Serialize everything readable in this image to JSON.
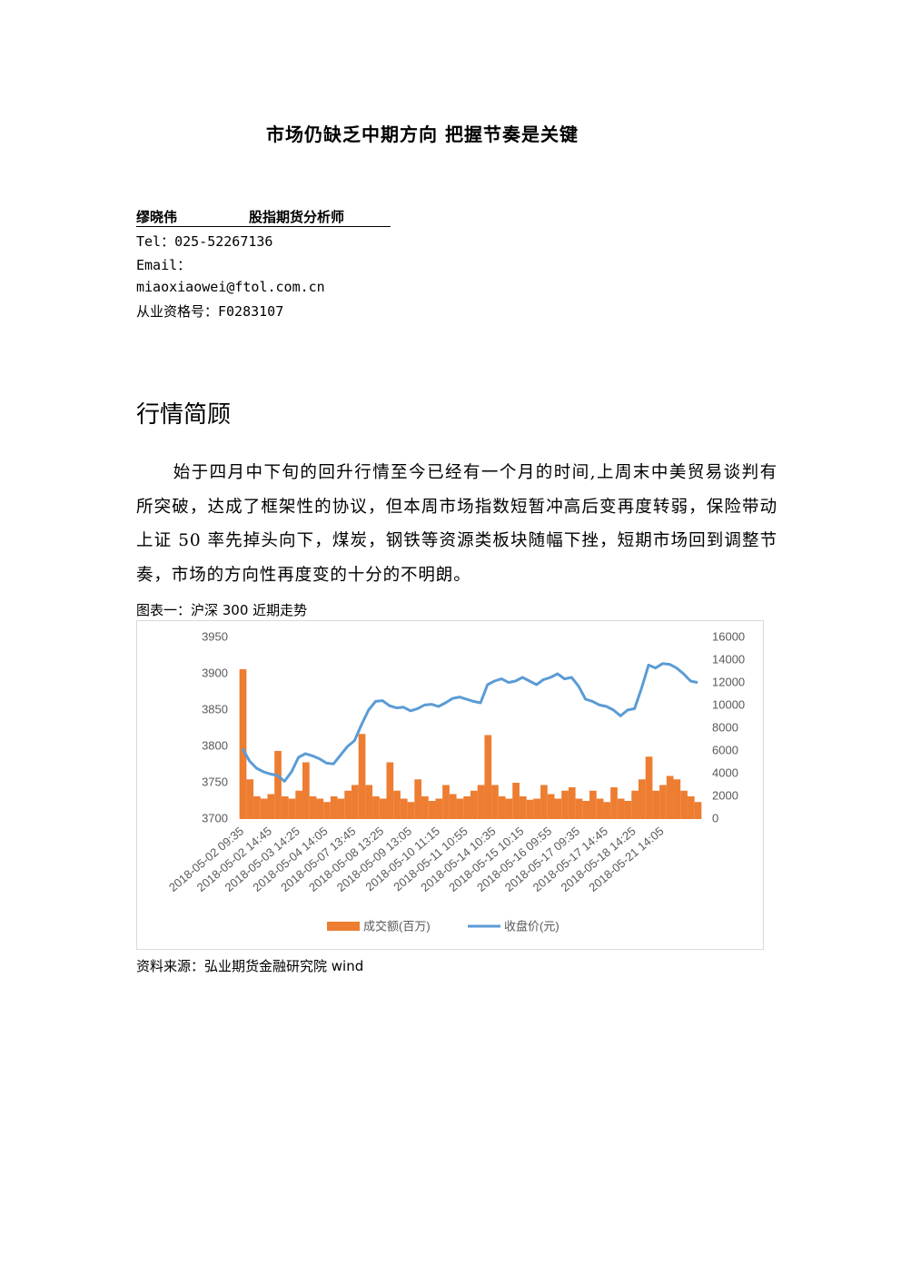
{
  "header": {
    "title": "市场仍缺乏中期方向 把握节奏是关键"
  },
  "author": {
    "name": "缪晓伟",
    "role": "股指期货分析师",
    "tel": "Tel：025-52267136",
    "email_label": "Email：",
    "email": "miaoxiaowei@ftol.com.cn",
    "license": "从业资格号：F0283107"
  },
  "section": {
    "heading": "行情简顾",
    "paragraph": "始于四月中下旬的回升行情至今已经有一个月的时间,上周末中美贸易谈判有所突破，达成了框架性的协议，但本周市场指数短暂冲高后变再度转弱，保险带动上证 50 率先掉头向下，煤炭，钢铁等资源类板块随幅下挫，短期市场回到调整节奏，市场的方向性再度变的十分的不明朗。"
  },
  "figure": {
    "caption": "图表一：沪深 300 近期走势",
    "source": "资料来源：弘业期货金融研究院  wind"
  },
  "chart_data": {
    "type": "bar-line",
    "categories": [
      "2018-05-02 09:35",
      null,
      null,
      null,
      "2018-05-02 14:45",
      null,
      null,
      null,
      "2018-05-03 14:25",
      null,
      null,
      null,
      "2018-05-04 14:05",
      null,
      null,
      null,
      "2018-05-07 13:45",
      null,
      null,
      null,
      "2018-05-08 13:25",
      null,
      null,
      null,
      "2018-05-09 13:05",
      null,
      null,
      null,
      "2018-05-10 11:15",
      null,
      null,
      null,
      "2018-05-11 10:55",
      null,
      null,
      null,
      "2018-05-14 10:35",
      null,
      null,
      null,
      "2018-05-15 10:15",
      null,
      null,
      null,
      "2018-05-16 09:55",
      null,
      null,
      null,
      "2018-05-17 09:35",
      null,
      null,
      null,
      "2018-05-17 14:45",
      null,
      null,
      null,
      "2018-05-18 14:25",
      null,
      null,
      null,
      "2018-05-21 14:05",
      null,
      null,
      null,
      null,
      null
    ],
    "series": [
      {
        "name": "成交额(百万)",
        "color": "#ed7d31",
        "kind": "bar",
        "axis": "y2",
        "values": [
          13200,
          3500,
          2000,
          1800,
          2200,
          6000,
          2000,
          1800,
          2500,
          5000,
          2000,
          1800,
          1500,
          2000,
          1800,
          2500,
          3000,
          7500,
          3000,
          2000,
          1800,
          5000,
          2500,
          1800,
          1500,
          3500,
          2000,
          1600,
          1800,
          3000,
          2200,
          1800,
          2000,
          2500,
          3000,
          7400,
          3000,
          2000,
          1800,
          3200,
          2000,
          1700,
          1800,
          3000,
          2200,
          1800,
          2500,
          2800,
          1800,
          1600,
          2500,
          1800,
          1500,
          2800,
          1800,
          1600,
          2500,
          3500,
          5500,
          2500,
          3000,
          3800,
          3500,
          2500,
          2000,
          1500
        ]
      },
      {
        "name": "收盘价(元)",
        "color": "#5b9bd5",
        "kind": "line",
        "values": [
          3797,
          3780,
          3770,
          3765,
          3762,
          3760,
          3752,
          3765,
          3785,
          3790,
          3787,
          3783,
          3777,
          3776,
          3788,
          3800,
          3808,
          3830,
          3850,
          3862,
          3863,
          3856,
          3853,
          3854,
          3849,
          3852,
          3857,
          3858,
          3855,
          3860,
          3866,
          3868,
          3865,
          3862,
          3860,
          3885,
          3890,
          3893,
          3888,
          3890,
          3895,
          3890,
          3885,
          3892,
          3895,
          3900,
          3893,
          3895,
          3883,
          3865,
          3862,
          3857,
          3855,
          3850,
          3842,
          3850,
          3852,
          3880,
          3912,
          3908,
          3914,
          3913,
          3908,
          3900,
          3890,
          3888
        ]
      }
    ],
    "ylim": [
      3700,
      3950
    ],
    "yticks": [
      3700,
      3750,
      3800,
      3850,
      3900,
      3950
    ],
    "y2lim": [
      0,
      16000
    ],
    "y2ticks": [
      0,
      2000,
      4000,
      6000,
      8000,
      10000,
      12000,
      14000,
      16000
    ],
    "grid": false,
    "legend": "bottom"
  }
}
